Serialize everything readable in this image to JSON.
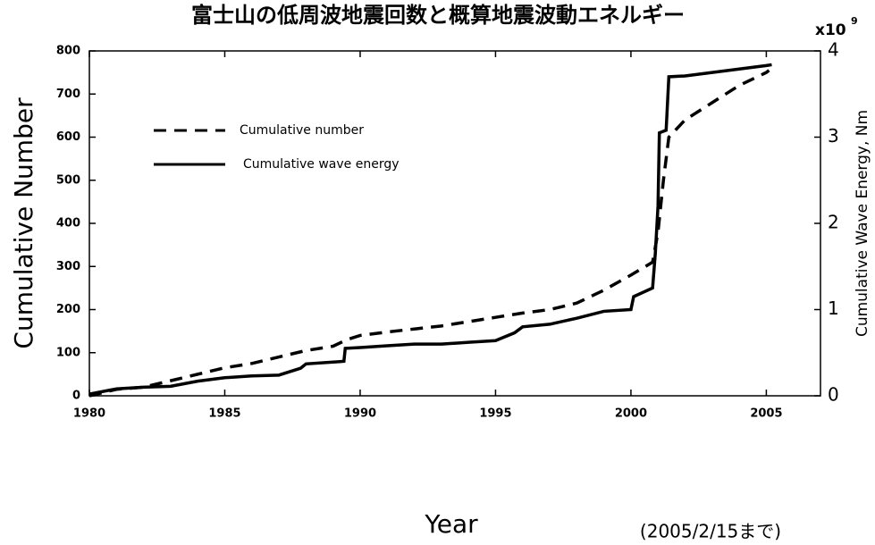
{
  "chart_data": {
    "type": "line",
    "title": "富士山の低周波地震回数と概算地震波動エネルギー",
    "x_label": "Year",
    "y_label": "Cumulative Number",
    "y2_label": "Cumulative Wave Energy, Nm",
    "y2_scale_label": {
      "base": "x10",
      "exponent": "9"
    },
    "annotation": "(2005/2/15まで)",
    "xlim": [
      1980,
      2007
    ],
    "xticks": [
      1980,
      1985,
      1990,
      1995,
      2000,
      2005
    ],
    "ylim": [
      0,
      800
    ],
    "yticks": [
      0,
      100,
      200,
      300,
      400,
      500,
      600,
      700,
      800
    ],
    "y2lim": [
      0,
      4
    ],
    "y2ticks": [
      0,
      1,
      2,
      3,
      4
    ],
    "legend": "upper left",
    "series": [
      {
        "name": "Cumulative number",
        "color": "#000000",
        "dash": true,
        "x": [
          1980,
          1981,
          1982,
          1983,
          1984,
          1985,
          1986,
          1987,
          1988,
          1989,
          1989.5,
          1990,
          1991,
          1992,
          1993,
          1994,
          1995,
          1996,
          1997,
          1998,
          1999,
          2000,
          2000.8,
          2001.0,
          2001.2,
          2001.4,
          2002,
          2003,
          2004,
          2005,
          2005.1
        ],
        "values": [
          0,
          15,
          20,
          35,
          50,
          65,
          75,
          90,
          105,
          115,
          130,
          140,
          148,
          155,
          162,
          172,
          182,
          192,
          200,
          215,
          245,
          280,
          310,
          380,
          500,
          600,
          640,
          680,
          720,
          750,
          755
        ]
      },
      {
        "name": "Cumulative wave energy",
        "color": "#000000",
        "dash": false,
        "axis": "y2",
        "x": [
          1980,
          1981,
          1982,
          1983,
          1984,
          1985,
          1986,
          1987,
          1987.8,
          1988,
          1989.4,
          1989.45,
          1990,
          1991,
          1992,
          1993,
          1994,
          1995,
          1995.7,
          1996,
          1997,
          1998,
          1999,
          2000,
          2000.1,
          2000.8,
          2000.9,
          2001.0,
          2001.05,
          2001.3,
          2001.4,
          2002,
          2003,
          2004,
          2005,
          2005.2
        ],
        "values": [
          0.02,
          0.08,
          0.1,
          0.11,
          0.17,
          0.21,
          0.23,
          0.24,
          0.32,
          0.37,
          0.4,
          0.55,
          0.56,
          0.58,
          0.6,
          0.6,
          0.62,
          0.64,
          0.73,
          0.8,
          0.83,
          0.9,
          0.98,
          1.0,
          1.15,
          1.25,
          1.65,
          2.2,
          3.05,
          3.08,
          3.7,
          3.71,
          3.75,
          3.79,
          3.83,
          3.84
        ]
      }
    ]
  }
}
